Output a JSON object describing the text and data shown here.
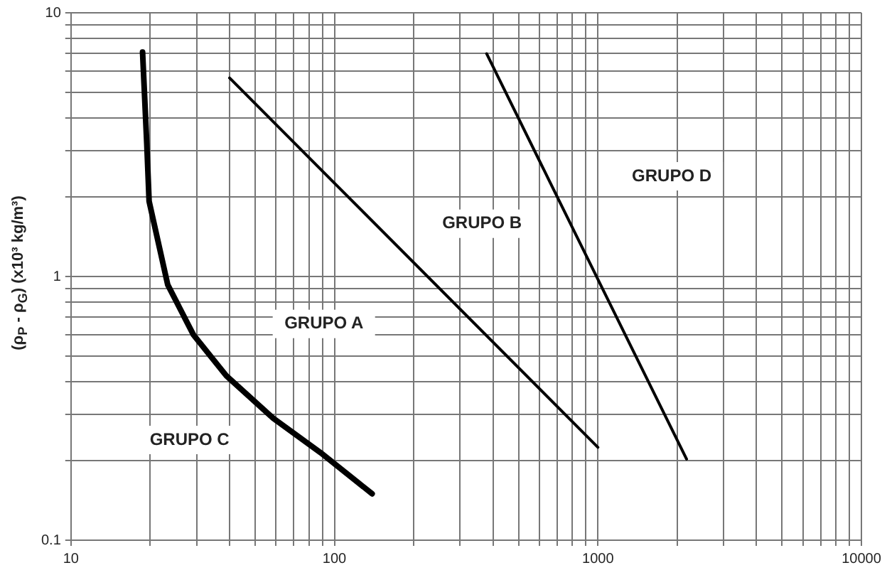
{
  "chart_data": {
    "type": "line",
    "ylabel": "(ρ$_{P}$ - ρ$_{G}$) (x10³ kg/m³)",
    "log": "xy",
    "grid": true,
    "marker": "none",
    "line_style": "solid",
    "xlim": [
      10,
      10000
    ],
    "ylim": [
      0.1,
      10
    ],
    "xticks": [
      10,
      {
        "value": 20,
        "label": null
      },
      {
        "value": 30,
        "label": null
      },
      {
        "value": 40,
        "label": null
      },
      {
        "value": 50,
        "label": null
      },
      {
        "value": 60,
        "label": null
      },
      {
        "value": 70,
        "label": null
      },
      {
        "value": 80,
        "label": null
      },
      {
        "value": 90,
        "label": null
      },
      100,
      {
        "value": 200,
        "label": null
      },
      {
        "value": 300,
        "label": null
      },
      {
        "value": 400,
        "label": null
      },
      {
        "value": 500,
        "label": null
      },
      {
        "value": 600,
        "label": null
      },
      {
        "value": 700,
        "label": null
      },
      {
        "value": 800,
        "label": null
      },
      {
        "value": 900,
        "label": null
      },
      1000,
      {
        "value": 2000,
        "label": null
      },
      {
        "value": 3000,
        "label": null
      },
      {
        "value": 4000,
        "label": null
      },
      {
        "value": 5000,
        "label": null
      },
      {
        "value": 6000,
        "label": null
      },
      {
        "value": 7000,
        "label": null
      },
      {
        "value": 8000,
        "label": null
      },
      {
        "value": 9000,
        "label": null
      },
      10000
    ],
    "yticks": [
      0.1,
      {
        "value": 0.2,
        "label": null
      },
      {
        "value": 0.3,
        "label": null
      },
      {
        "value": 0.4,
        "label": null
      },
      {
        "value": 0.5,
        "label": null
      },
      {
        "value": 0.6,
        "label": null
      },
      {
        "value": 0.7,
        "label": null
      },
      {
        "value": 0.8,
        "label": null
      },
      {
        "value": 0.9,
        "label": null
      },
      1,
      {
        "value": 2,
        "label": null
      },
      {
        "value": 3,
        "label": null
      },
      {
        "value": 4,
        "label": null
      },
      {
        "value": 5,
        "label": null
      },
      {
        "value": 6,
        "label": null
      },
      {
        "value": 7,
        "label": null
      },
      {
        "value": 8,
        "label": null
      },
      {
        "value": 9,
        "label": null
      },
      10
    ],
    "series": [
      {
        "color": "#000000",
        "x": [
          18.7,
          19.4,
          19.8,
          23.3,
          29.2,
          38.9,
          58.6,
          88.5,
          139
        ],
        "values": [
          7.1,
          3.2,
          1.93,
          0.93,
          0.6,
          0.42,
          0.29,
          0.215,
          0.15
        ]
      },
      {
        "color": "#000000",
        "x": [
          40,
          1000
        ],
        "values": [
          5.66,
          0.225
        ]
      },
      {
        "color": "#000000",
        "x": [
          378,
          2170
        ],
        "values": [
          7.0,
          0.203
        ]
      }
    ],
    "annotations": [
      "GRUPO A",
      "GRUPO B",
      "GRUPO C",
      "GRUPO D"
    ]
  }
}
